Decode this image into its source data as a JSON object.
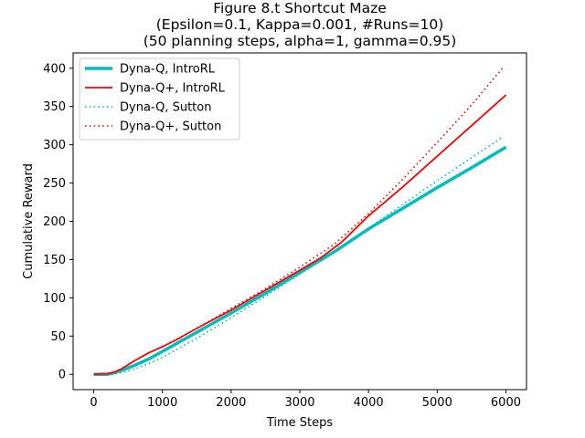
{
  "chart_data": {
    "type": "line",
    "title_lines": [
      "Figure 8.t Shortcut Maze",
      "(Epsilon=0.1, Kappa=0.001, #Runs=10)",
      "(50 planning steps, alpha=1, gamma=0.95)"
    ],
    "xlabel": "Time Steps",
    "ylabel": "Cumulative Reward",
    "xlim": [
      -300,
      6300
    ],
    "ylim": [
      -20,
      420
    ],
    "xticks": [
      0,
      1000,
      2000,
      3000,
      4000,
      5000,
      6000
    ],
    "yticks": [
      0,
      50,
      100,
      150,
      200,
      250,
      300,
      350,
      400
    ],
    "grid": false,
    "legend_position": "top-left",
    "series": [
      {
        "name": "Dyna-Q, IntroRL",
        "color": "#00bfbf",
        "style": "solid-thick",
        "x": [
          0,
          200,
          300,
          400,
          600,
          800,
          1000,
          1500,
          2000,
          2500,
          3000,
          3500,
          4000,
          4500,
          5000,
          5500,
          6000
        ],
        "y": [
          0,
          0,
          2,
          5,
          12,
          20,
          30,
          55,
          80,
          106,
          133,
          160,
          190,
          217,
          244,
          270,
          297
        ]
      },
      {
        "name": "Dyna-Q+, IntroRL",
        "color": "#ff0000",
        "style": "solid",
        "x": [
          0,
          200,
          300,
          400,
          600,
          800,
          1000,
          1200,
          1500,
          2000,
          2500,
          3000,
          3300,
          3600,
          4000,
          4500,
          5000,
          5500,
          6000
        ],
        "y": [
          0,
          1,
          3,
          7,
          18,
          28,
          36,
          45,
          60,
          84,
          110,
          136,
          152,
          172,
          207,
          245,
          285,
          325,
          365
        ]
      },
      {
        "name": "Dyna-Q, Sutton",
        "color": "#00bfbf",
        "style": "dotted",
        "x": [
          0,
          200,
          400,
          600,
          800,
          1000,
          1500,
          2000,
          2500,
          3000,
          3500,
          4000,
          4500,
          5000,
          5500,
          5950
        ],
        "y": [
          -1,
          -1,
          2,
          7,
          14,
          22,
          47,
          74,
          102,
          131,
          160,
          191,
          222,
          253,
          283,
          310
        ]
      },
      {
        "name": "Dyna-Q+, Sutton",
        "color": "#ff0000",
        "style": "dotted",
        "x": [
          0,
          200,
          300,
          400,
          600,
          800,
          1000,
          1500,
          2000,
          2500,
          3000,
          3500,
          4000,
          4500,
          5000,
          5500,
          5950
        ],
        "y": [
          0,
          1,
          3,
          7,
          18,
          28,
          36,
          60,
          86,
          112,
          140,
          170,
          210,
          255,
          303,
          352,
          400
        ]
      }
    ]
  }
}
